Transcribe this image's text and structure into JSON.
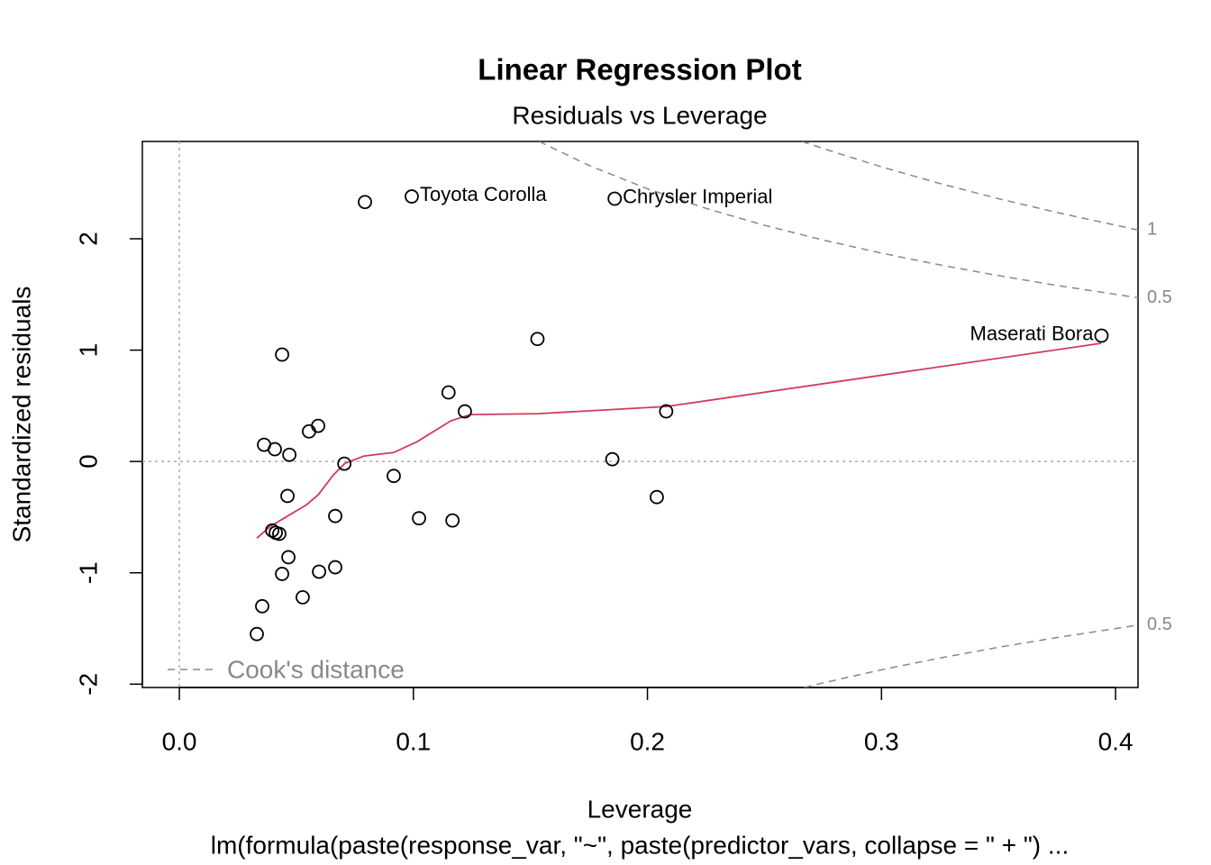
{
  "chart_data": {
    "type": "scatter",
    "title": "Linear Regression Plot",
    "subtitle": "Residuals vs Leverage",
    "x_label": "Leverage",
    "y_label": "Standardized residuals",
    "caption": "lm(formula(paste(response_var, \"~\", paste(predictor_vars, collapse = \" + \") ...",
    "xlim": [
      -0.0158,
      0.4096
    ],
    "ylim": [
      -2.03,
      2.874
    ],
    "xticks": [
      {
        "value": 0,
        "label": "0.0"
      },
      0.1,
      0.2,
      0.3,
      0.4
    ],
    "yticks": [
      -2,
      -1,
      0,
      1,
      2
    ],
    "reference_lines": true,
    "legend": "bottom-left",
    "series": [
      {
        "name": "Residuals",
        "color": "#000000",
        "x": [
          0.0793,
          0.0993,
          0.186,
          0.394,
          0.153,
          0.0439,
          0.115,
          0.122,
          0.208,
          0.0593,
          0.0554,
          0.0362,
          0.0408,
          0.047,
          0.0705,
          0.185,
          0.0916,
          0.0462,
          0.204,
          0.0666,
          0.1024,
          0.1167,
          0.0397,
          0.0412,
          0.0427,
          0.0466,
          0.0666,
          0.0597,
          0.0439,
          0.0527,
          0.0354,
          0.0331
        ],
        "values": [
          2.33,
          2.38,
          2.36,
          1.13,
          1.1,
          0.96,
          0.62,
          0.45,
          0.45,
          0.32,
          0.27,
          0.15,
          0.11,
          0.06,
          -0.02,
          0.02,
          -0.13,
          -0.31,
          -0.32,
          -0.49,
          -0.51,
          -0.53,
          -0.62,
          -0.64,
          -0.65,
          -0.86,
          -0.95,
          -0.99,
          -1.01,
          -1.22,
          -1.3,
          -1.55
        ],
        "labels": [
          null,
          "Toyota Corolla",
          "Chrysler Imperial",
          "Maserati Bora",
          null,
          null,
          null,
          null,
          null,
          null,
          null,
          null,
          null,
          null,
          null,
          null,
          null,
          null,
          null,
          null,
          null,
          null,
          null,
          null,
          null,
          null,
          null,
          null,
          null,
          null,
          null,
          null
        ]
      }
    ],
    "smooth": {
      "color": "#d03c5a",
      "x": [
        0.0331,
        0.0389,
        0.0466,
        0.0543,
        0.0593,
        0.0658,
        0.0708,
        0.0789,
        0.0916,
        0.1016,
        0.1159,
        0.1243,
        0.1532,
        0.2083,
        0.3938
      ],
      "values": [
        -0.688,
        -0.583,
        -0.486,
        -0.389,
        -0.3,
        -0.121,
        -0.016,
        0.049,
        0.081,
        0.178,
        0.364,
        0.421,
        0.429,
        0.494,
        1.061
      ]
    },
    "cooks_distance": {
      "name": "Cook's distance",
      "color": "#888888",
      "contours": [
        {
          "level": 0.5,
          "x": [
            0.1537,
            0.175,
            0.2,
            0.225,
            0.25,
            0.275,
            0.3,
            0.325,
            0.35,
            0.375,
            0.4096
          ],
          "values": [
            2.874,
            2.659,
            2.449,
            2.273,
            2.121,
            1.989,
            1.871,
            1.765,
            1.669,
            1.581,
            1.47
          ]
        },
        {
          "level": 1,
          "x": [
            0.266,
            0.28,
            0.3,
            0.325,
            0.35,
            0.375,
            0.4096
          ],
          "values": [
            2.874,
            2.777,
            2.646,
            2.496,
            2.36,
            2.236,
            2.079
          ]
        },
        {
          "level": 0.5,
          "x": [
            0.267,
            0.275,
            0.3,
            0.325,
            0.35,
            0.375,
            0.4096
          ],
          "values": [
            -2.03,
            -1.989,
            -1.871,
            -1.765,
            -1.669,
            -1.581,
            -1.47
          ]
        }
      ]
    }
  }
}
